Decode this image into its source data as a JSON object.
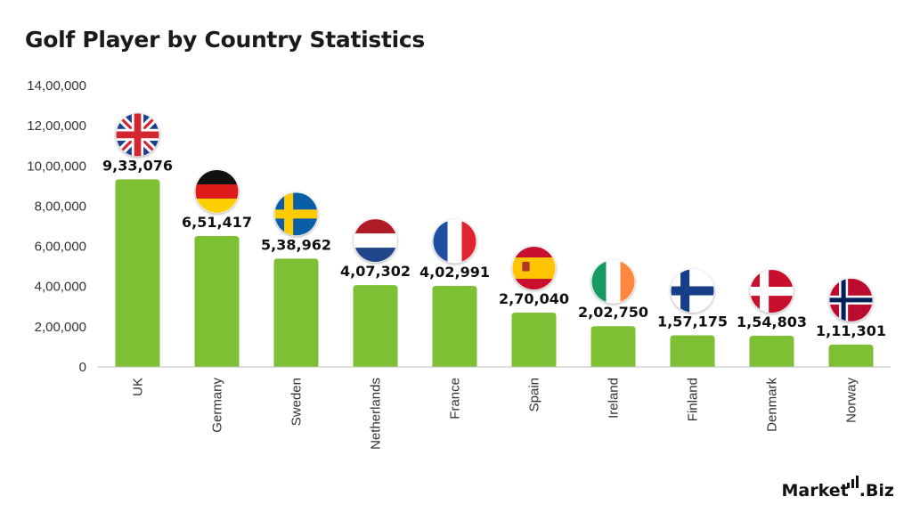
{
  "title": "Golf Player by Country Statistics",
  "logo_text": {
    "left": "Market",
    "right": ".Biz"
  },
  "colors": {
    "bar": "#7dc033",
    "axis": "#bfbfbf",
    "text": "#111111"
  },
  "chart_data": {
    "type": "bar",
    "title": "Golf Player by Country Statistics",
    "xlabel": "",
    "ylabel": "",
    "categories": [
      "UK",
      "Germany",
      "Sweden",
      "Netherlands",
      "France",
      "Spain",
      "Ireland",
      "Finland",
      "Denmark",
      "Norway"
    ],
    "values": [
      933076,
      651417,
      538962,
      407302,
      402991,
      270040,
      202750,
      157175,
      154803,
      111301
    ],
    "value_labels": [
      "9,33,076",
      "6,51,417",
      "5,38,962",
      "4,07,302",
      "4,02,991",
      "2,70,040",
      "2,02,750",
      "1,57,175",
      "1,54,803",
      "1,11,301"
    ],
    "yticks": [
      0,
      200000,
      400000,
      600000,
      800000,
      1000000,
      1200000,
      1400000
    ],
    "ytick_labels": [
      "0",
      "2,00,000",
      "4,00,000",
      "6,00,000",
      "8,00,000",
      "10,00,000",
      "12,00,000",
      "14,00,000"
    ],
    "ylim": [
      0,
      1400000
    ],
    "grid": false,
    "legend": "none",
    "flag_icons": [
      "uk-flag-icon",
      "germany-flag-icon",
      "sweden-flag-icon",
      "netherlands-flag-icon",
      "france-flag-icon",
      "spain-flag-icon",
      "ireland-flag-icon",
      "finland-flag-icon",
      "denmark-flag-icon",
      "norway-flag-icon"
    ]
  }
}
